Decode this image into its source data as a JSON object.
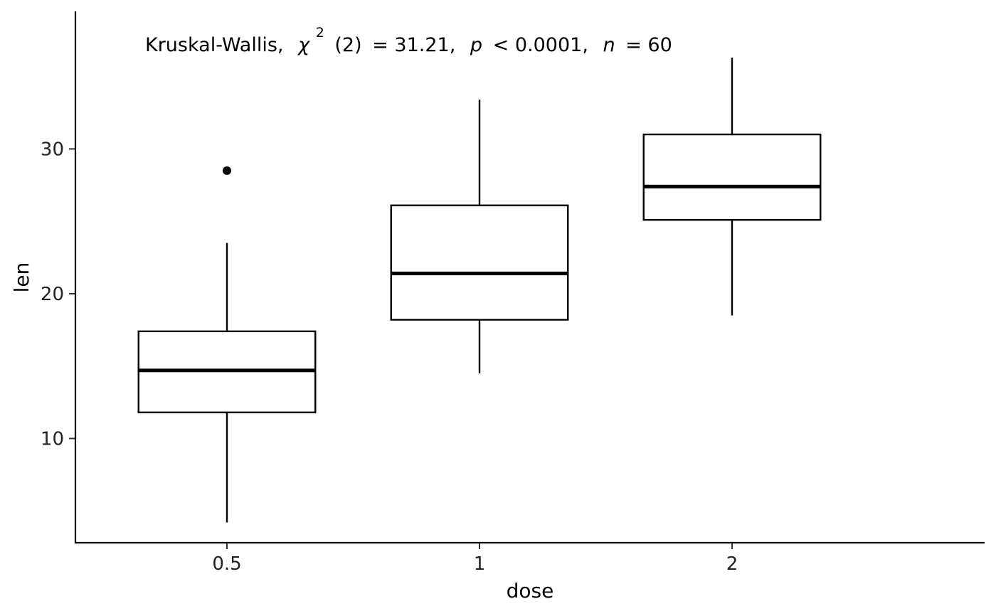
{
  "chart_data": {
    "type": "box",
    "xlabel": "dose",
    "ylabel": "len",
    "categories": [
      "0.5",
      "1",
      "2"
    ],
    "ylim": [
      2.8,
      39.5
    ],
    "yticks": [
      10,
      20,
      30
    ],
    "boxes": [
      {
        "category": "0.5",
        "whisker_low": 4.2,
        "q1": 11.8,
        "median": 14.7,
        "q3": 17.4,
        "whisker_high": 23.5,
        "outliers": [
          28.5
        ]
      },
      {
        "category": "1",
        "whisker_low": 14.5,
        "q1": 18.2,
        "median": 21.4,
        "q3": 26.1,
        "whisker_high": 33.4,
        "outliers": []
      },
      {
        "category": "2",
        "whisker_low": 18.5,
        "q1": 25.1,
        "median": 27.4,
        "q3": 31.0,
        "whisker_high": 36.3,
        "outliers": []
      }
    ],
    "annotation": {
      "test": "Kruskal-Wallis,",
      "chi_symbol": "χ",
      "chi_exp": "2",
      "df": "(2)",
      "stat": "= 31.21,",
      "p_symbol": "p",
      "p_value": "< 0.0001,",
      "n_symbol": "n",
      "n_value": "= 60"
    },
    "colors": {
      "box_stroke": "#000000",
      "box_fill": "#ffffff",
      "background": "#ffffff"
    }
  }
}
